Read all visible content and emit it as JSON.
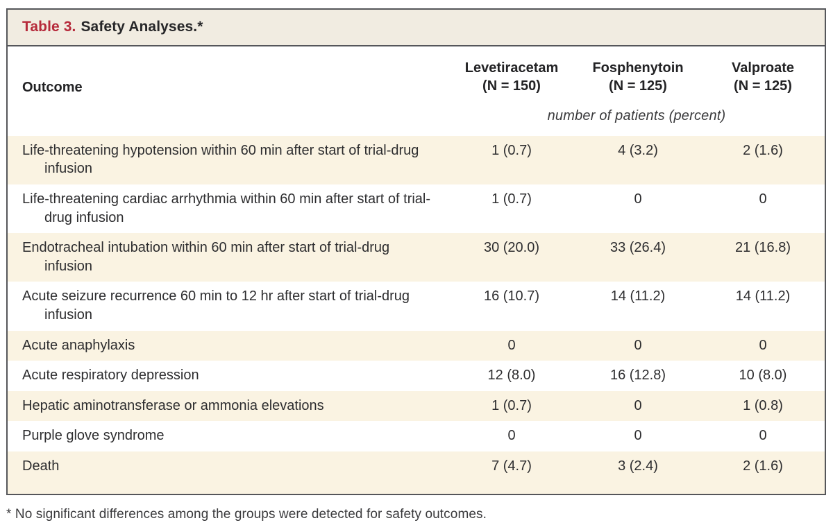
{
  "table": {
    "title_label": "Table 3.",
    "title_text": "Safety Analyses.*",
    "outcome_header": "Outcome",
    "columns": [
      {
        "name": "Levetiracetam",
        "n": "(N = 150)"
      },
      {
        "name": "Fosphenytoin",
        "n": "(N = 125)"
      },
      {
        "name": "Valproate",
        "n": "(N = 125)"
      }
    ],
    "units_note": "number of patients (percent)",
    "rows": [
      {
        "outcome": "Life-threatening hypotension within 60 min after start of trial-drug infusion",
        "values": [
          "1 (0.7)",
          "4 (3.2)",
          "2 (1.6)"
        ]
      },
      {
        "outcome": "Life-threatening cardiac arrhythmia within 60 min after start of trial-drug infusion",
        "values": [
          "1 (0.7)",
          "0",
          "0"
        ]
      },
      {
        "outcome": "Endotracheal intubation within 60 min after start of trial-drug infusion",
        "values": [
          "30 (20.0)",
          "33 (26.4)",
          "21 (16.8)"
        ]
      },
      {
        "outcome": "Acute seizure recurrence 60 min to 12 hr after start of trial-drug infusion",
        "values": [
          "16 (10.7)",
          "14 (11.2)",
          "14 (11.2)"
        ]
      },
      {
        "outcome": "Acute anaphylaxis",
        "values": [
          "0",
          "0",
          "0"
        ]
      },
      {
        "outcome": "Acute respiratory depression",
        "values": [
          "12 (8.0)",
          "16 (12.8)",
          "10 (8.0)"
        ]
      },
      {
        "outcome": "Hepatic aminotransferase or ammonia elevations",
        "values": [
          "1 (0.7)",
          "0",
          "1 (0.8)"
        ]
      },
      {
        "outcome": "Purple glove syndrome",
        "values": [
          "0",
          "0",
          "0"
        ]
      },
      {
        "outcome": "Death",
        "values": [
          "7 (4.7)",
          "3 (2.4)",
          "2 (1.6)"
        ]
      }
    ],
    "footnote": "* No significant differences among the groups were detected for safety outcomes."
  }
}
